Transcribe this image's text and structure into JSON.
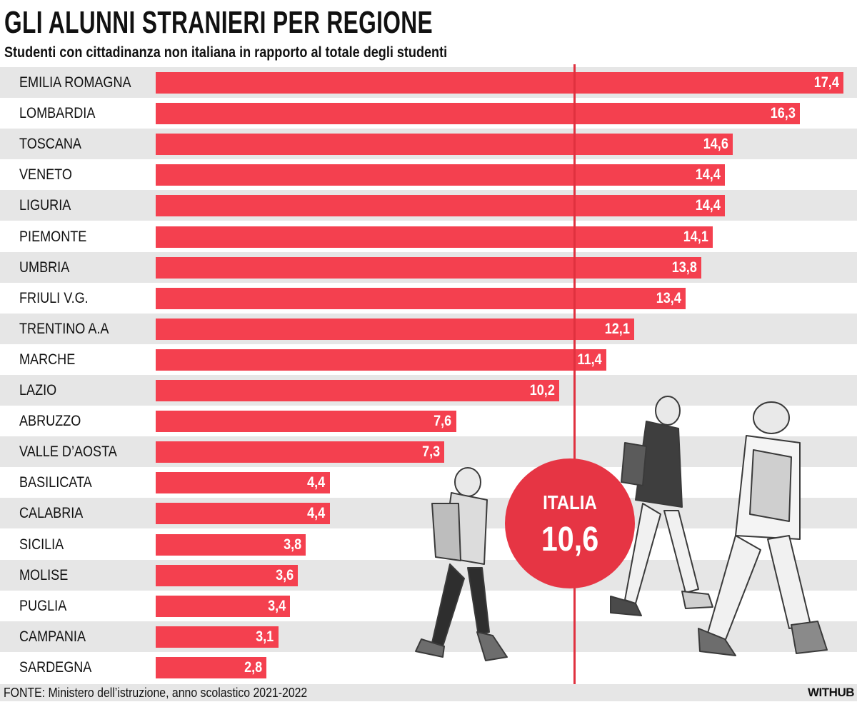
{
  "title": "GLI ALUNNI STRANIERI PER REGIONE",
  "subtitle": "Studenti con cittadinanza non italiana in rapporto al totale degli studenti",
  "chart_data": {
    "type": "bar",
    "orientation": "horizontal",
    "title": "GLI ALUNNI STRANIERI PER REGIONE",
    "subtitle": "Studenti con cittadinanza non italiana in rapporto al totale degli studenti",
    "categories": [
      "EMILIA ROMAGNA",
      "LOMBARDIA",
      "TOSCANA",
      "VENETO",
      "LIGURIA",
      "PIEMONTE",
      "UMBRIA",
      "FRIULI V.G.",
      "TRENTINO A.A",
      "MARCHE",
      "LAZIO",
      "ABRUZZO",
      "VALLE D’AOSTA",
      "BASILICATA",
      "CALABRIA",
      "SICILIA",
      "MOLISE",
      "PUGLIA",
      "CAMPANIA",
      "SARDEGNA"
    ],
    "values": [
      17.4,
      16.3,
      14.6,
      14.4,
      14.4,
      14.1,
      13.8,
      13.4,
      12.1,
      11.4,
      10.2,
      7.6,
      7.3,
      4.4,
      4.4,
      3.8,
      3.6,
      3.4,
      3.1,
      2.8
    ],
    "value_labels": [
      "17,4",
      "16,3",
      "14,6",
      "14,4",
      "14,4",
      "14,1",
      "13,8",
      "13,4",
      "12,1",
      "11,4",
      "10,2",
      "7,6",
      "7,3",
      "4,4",
      "4,4",
      "3,8",
      "3,6",
      "3,4",
      "3,1",
      "2,8"
    ],
    "reference_line": {
      "label": "ITALIA",
      "value": 10.6,
      "value_label": "10,6"
    },
    "xlim": [
      0,
      17.4
    ],
    "bar_color": "#f4404f",
    "grid": false,
    "legend": "none"
  },
  "reference": {
    "label": "ITALIA",
    "value_label": "10,6"
  },
  "footer": {
    "source": "FONTE: Ministero dell’istruzione, anno scolastico 2021-2022",
    "brand": "WITHUB"
  }
}
